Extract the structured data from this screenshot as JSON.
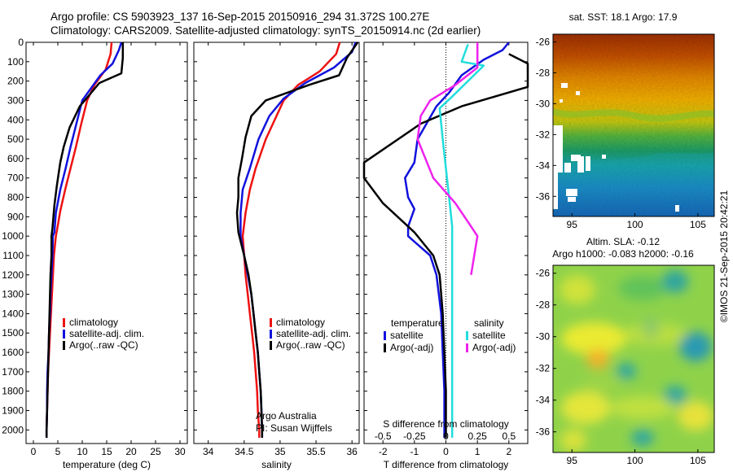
{
  "header": {
    "line1": "Argo profile: CS 5903923_137 16-Sep-2015 20150916_294 31.372S 100.27E",
    "line2": "Climatology: CARS2009. Satellite-adjusted climatology: synTS_20150914.nc (2d earlier)"
  },
  "credit": "©IMOS 21-Sep-2015 20:42:21",
  "colors": {
    "clim": "#ee1111",
    "sat": "#1111dd",
    "argo": "#000000",
    "sat_sal": "#22dddd",
    "argo_sal": "#ee22ee"
  },
  "chart_data": [
    {
      "type": "line",
      "name": "temperature-profile",
      "xlabel": "temperature (deg C)",
      "ylim": [
        2070,
        0
      ],
      "xlim": [
        -1.5,
        31.5
      ],
      "xticks": [
        "0",
        "5",
        "10",
        "15",
        "20",
        "25",
        "30"
      ],
      "yticks": [
        "0",
        "100",
        "200",
        "300",
        "400",
        "500",
        "600",
        "700",
        "800",
        "900",
        "1000",
        "1100",
        "1200",
        "1300",
        "1400",
        "1500",
        "1600",
        "1700",
        "1800",
        "1900",
        "2000"
      ],
      "legend": [
        {
          "label": "climatology",
          "key": "clim"
        },
        {
          "label": "satellite-adj. clim.",
          "key": "sat"
        },
        {
          "label": "Argo(..raw -QC)",
          "key": "argo"
        }
      ],
      "series": [
        {
          "key": "clim",
          "points": [
            [
              16,
              0
            ],
            [
              15.8,
              60
            ],
            [
              14.8,
              140
            ],
            [
              12.5,
              220
            ],
            [
              11,
              300
            ],
            [
              9.8,
              420
            ],
            [
              8.7,
              540
            ],
            [
              7.6,
              650
            ],
            [
              6.6,
              750
            ],
            [
              5.5,
              870
            ],
            [
              4.9,
              960
            ],
            [
              4.6,
              1000
            ],
            [
              4.2,
              1100
            ],
            [
              4.0,
              1200
            ],
            [
              3.8,
              1300
            ],
            [
              3.6,
              1400
            ],
            [
              3.4,
              1500
            ],
            [
              3.2,
              1600
            ],
            [
              3.0,
              1700
            ],
            [
              2.9,
              1800
            ],
            [
              2.8,
              1900
            ],
            [
              2.7,
              2000
            ],
            [
              2.7,
              2040
            ]
          ]
        },
        {
          "key": "sat",
          "points": [
            [
              18,
              0
            ],
            [
              17.5,
              40
            ],
            [
              16.2,
              110
            ],
            [
              13.7,
              170
            ],
            [
              11.7,
              240
            ],
            [
              10,
              300
            ],
            [
              8.8,
              420
            ],
            [
              7.6,
              540
            ],
            [
              6.6,
              650
            ],
            [
              5.5,
              760
            ],
            [
              4.6,
              880
            ],
            [
              4.3,
              980
            ],
            [
              4.0,
              1000
            ],
            [
              3.9,
              1100
            ],
            [
              3.7,
              1200
            ],
            [
              3.5,
              1300
            ],
            [
              3.4,
              1400
            ],
            [
              3.2,
              1500
            ],
            [
              3.1,
              1600
            ],
            [
              2.9,
              1700
            ],
            [
              2.8,
              1800
            ],
            [
              2.8,
              1900
            ],
            [
              2.7,
              2000
            ],
            [
              2.7,
              2040
            ]
          ]
        },
        {
          "key": "argo",
          "points": [
            [
              18.3,
              0
            ],
            [
              18.3,
              80
            ],
            [
              18,
              160
            ],
            [
              13.5,
              210
            ],
            [
              11.5,
              270
            ],
            [
              9.5,
              330
            ],
            [
              7.4,
              440
            ],
            [
              6.2,
              540
            ],
            [
              5.5,
              620
            ],
            [
              4.8,
              740
            ],
            [
              4.3,
              840
            ],
            [
              3.9,
              960
            ],
            [
              3.7,
              1000
            ],
            [
              3.7,
              1100
            ],
            [
              3.5,
              1200
            ],
            [
              3.4,
              1300
            ],
            [
              3.3,
              1400
            ],
            [
              3.2,
              1500
            ],
            [
              3.1,
              1600
            ],
            [
              3.0,
              1700
            ],
            [
              2.9,
              1800
            ],
            [
              2.8,
              1900
            ],
            [
              2.7,
              2000
            ],
            [
              2.7,
              2040
            ]
          ]
        }
      ]
    },
    {
      "type": "line",
      "name": "salinity-profile",
      "xlabel": "salinity",
      "ylim": [
        2070,
        0
      ],
      "xlim": [
        33.8,
        36.1
      ],
      "xticks": [
        "34",
        "34.5",
        "35",
        "35.5",
        "36"
      ],
      "legend": [
        {
          "label": "climatology",
          "key": "clim"
        },
        {
          "label": "satellite-adj. clim.",
          "key": "sat"
        },
        {
          "label": "Argo(..raw -QC)",
          "key": "argo"
        }
      ],
      "annotations": [
        "Argo Australia",
        "PI: Susan Wijffels"
      ],
      "series": [
        {
          "key": "clim",
          "points": [
            [
              35.83,
              0
            ],
            [
              35.78,
              60
            ],
            [
              35.55,
              150
            ],
            [
              35.25,
              220
            ],
            [
              35.05,
              300
            ],
            [
              34.95,
              380
            ],
            [
              34.8,
              500
            ],
            [
              34.66,
              650
            ],
            [
              34.58,
              760
            ],
            [
              34.52,
              880
            ],
            [
              34.48,
              1000
            ],
            [
              34.5,
              1100
            ],
            [
              34.52,
              1200
            ],
            [
              34.55,
              1300
            ],
            [
              34.58,
              1400
            ],
            [
              34.61,
              1500
            ],
            [
              34.64,
              1600
            ],
            [
              34.66,
              1700
            ],
            [
              34.68,
              1800
            ],
            [
              34.69,
              1900
            ],
            [
              34.71,
              2000
            ],
            [
              34.71,
              2040
            ]
          ]
        },
        {
          "key": "sat",
          "points": [
            [
              36.05,
              0
            ],
            [
              36.0,
              50
            ],
            [
              35.75,
              130
            ],
            [
              35.35,
              210
            ],
            [
              35.05,
              290
            ],
            [
              34.85,
              380
            ],
            [
              34.7,
              500
            ],
            [
              34.58,
              650
            ],
            [
              34.48,
              760
            ],
            [
              34.45,
              880
            ],
            [
              34.45,
              1000
            ],
            [
              34.5,
              1100
            ],
            [
              34.55,
              1200
            ],
            [
              34.6,
              1300
            ],
            [
              34.63,
              1400
            ],
            [
              34.66,
              1500
            ],
            [
              34.69,
              1600
            ],
            [
              34.71,
              1700
            ],
            [
              34.73,
              1800
            ],
            [
              34.74,
              1900
            ],
            [
              34.75,
              2000
            ],
            [
              34.75,
              2040
            ]
          ]
        },
        {
          "key": "argo",
          "points": [
            [
              36.08,
              0
            ],
            [
              35.93,
              80
            ],
            [
              35.82,
              170
            ],
            [
              35.4,
              220
            ],
            [
              35.1,
              260
            ],
            [
              34.8,
              300
            ],
            [
              34.6,
              380
            ],
            [
              34.52,
              490
            ],
            [
              34.47,
              600
            ],
            [
              34.42,
              700
            ],
            [
              34.42,
              800
            ],
            [
              34.4,
              880
            ],
            [
              34.42,
              980
            ],
            [
              34.5,
              1100
            ],
            [
              34.56,
              1200
            ],
            [
              34.6,
              1300
            ],
            [
              34.63,
              1400
            ],
            [
              34.66,
              1500
            ],
            [
              34.69,
              1600
            ],
            [
              34.71,
              1700
            ],
            [
              34.73,
              1800
            ],
            [
              34.74,
              1900
            ],
            [
              34.75,
              2000
            ],
            [
              34.75,
              2040
            ]
          ]
        }
      ]
    },
    {
      "type": "line",
      "name": "difference-profile",
      "xlabel": "T difference from climatology",
      "xlabel_top": "S difference from climatology",
      "ylim": [
        2070,
        0
      ],
      "xlim": [
        -2.6,
        2.6
      ],
      "xticks": [
        "-2",
        "-1",
        "0",
        "1",
        "2"
      ],
      "xticks_top": [
        "-0.5",
        "-0.25",
        "0",
        "0.25",
        "0.5"
      ],
      "legend": [
        {
          "group": "temperature",
          "label": "satellite",
          "key": "sat"
        },
        {
          "group": "temperature",
          "label": "Argo(-adj)",
          "key": "argo"
        },
        {
          "group": "salinity",
          "label": "satellite",
          "key": "sat_sal"
        },
        {
          "group": "salinity",
          "label": "Argo(-adj)",
          "key": "argo_sal"
        }
      ],
      "series": [
        {
          "key": "sat",
          "points": [
            [
              2,
              0
            ],
            [
              1.8,
              40
            ],
            [
              1.2,
              90
            ],
            [
              0.5,
              170
            ],
            [
              0.1,
              260
            ],
            [
              -0.3,
              330
            ],
            [
              -0.9,
              500
            ],
            [
              -1.0,
              620
            ],
            [
              -1.3,
              700
            ],
            [
              -1.2,
              800
            ],
            [
              -1.0,
              860
            ],
            [
              -1.2,
              950
            ],
            [
              -1.2,
              1000
            ],
            [
              -0.5,
              1100
            ],
            [
              -0.3,
              1200
            ],
            [
              -0.15,
              1400
            ],
            [
              -0.1,
              1600
            ],
            [
              -0.05,
              1800
            ],
            [
              -0.05,
              2040
            ]
          ]
        },
        {
          "key": "argo",
          "points": [
            [
              2,
              60
            ],
            [
              2.6,
              110
            ],
            [
              2.6,
              230
            ],
            [
              0.5,
              330
            ],
            [
              -0.8,
              420
            ],
            [
              -2.6,
              620
            ],
            [
              -2.6,
              700
            ],
            [
              -2.0,
              830
            ],
            [
              -1.0,
              980
            ],
            [
              -0.4,
              1100
            ],
            [
              -0.2,
              1200
            ],
            [
              -0.1,
              1400
            ],
            [
              -0.05,
              1600
            ],
            [
              0,
              1800
            ],
            [
              0,
              2040
            ]
          ]
        },
        {
          "key": "sat_sal",
          "points": [
            [
              0.7,
              10
            ],
            [
              0.5,
              100
            ],
            [
              1.2,
              120
            ],
            [
              0.2,
              280
            ],
            [
              -0.2,
              340
            ],
            [
              -0.1,
              500
            ],
            [
              0,
              650
            ],
            [
              0.1,
              800
            ],
            [
              0.2,
              950
            ],
            [
              0.2,
              1100
            ],
            [
              0.2,
              1300
            ],
            [
              0.2,
              1500
            ],
            [
              0.2,
              1700
            ],
            [
              0.2,
              1900
            ],
            [
              0.2,
              2000
            ],
            [
              0.2,
              2040
            ]
          ]
        },
        {
          "key": "argo_sal",
          "points": [
            [
              1.0,
              0
            ],
            [
              1.0,
              60
            ],
            [
              1.0,
              130
            ],
            [
              0.3,
              220
            ],
            [
              -0.5,
              300
            ],
            [
              -0.8,
              380
            ],
            [
              -0.9,
              500
            ],
            [
              -0.4,
              700
            ],
            [
              0.3,
              830
            ],
            [
              0.8,
              950
            ],
            [
              1.0,
              1000
            ],
            [
              0.9,
              1100
            ],
            [
              0.8,
              1200
            ]
          ]
        }
      ]
    },
    {
      "type": "heatmap",
      "name": "sst-map",
      "title": "sat. SST: 18.1 Argo: 17.9",
      "xticks": [
        "95",
        "100",
        "105"
      ],
      "yticks": [
        "-26",
        "-28",
        "-30",
        "-32",
        "-34",
        "-36"
      ]
    },
    {
      "type": "heatmap",
      "name": "sla-map",
      "title": "Altim. SLA: -0.12",
      "subtitle": "Argo h1000: -0.083 h2000: -0.16",
      "xticks": [
        "95",
        "100",
        "105"
      ],
      "yticks": [
        "-26",
        "-28",
        "-30",
        "-32",
        "-34",
        "-36"
      ]
    }
  ]
}
